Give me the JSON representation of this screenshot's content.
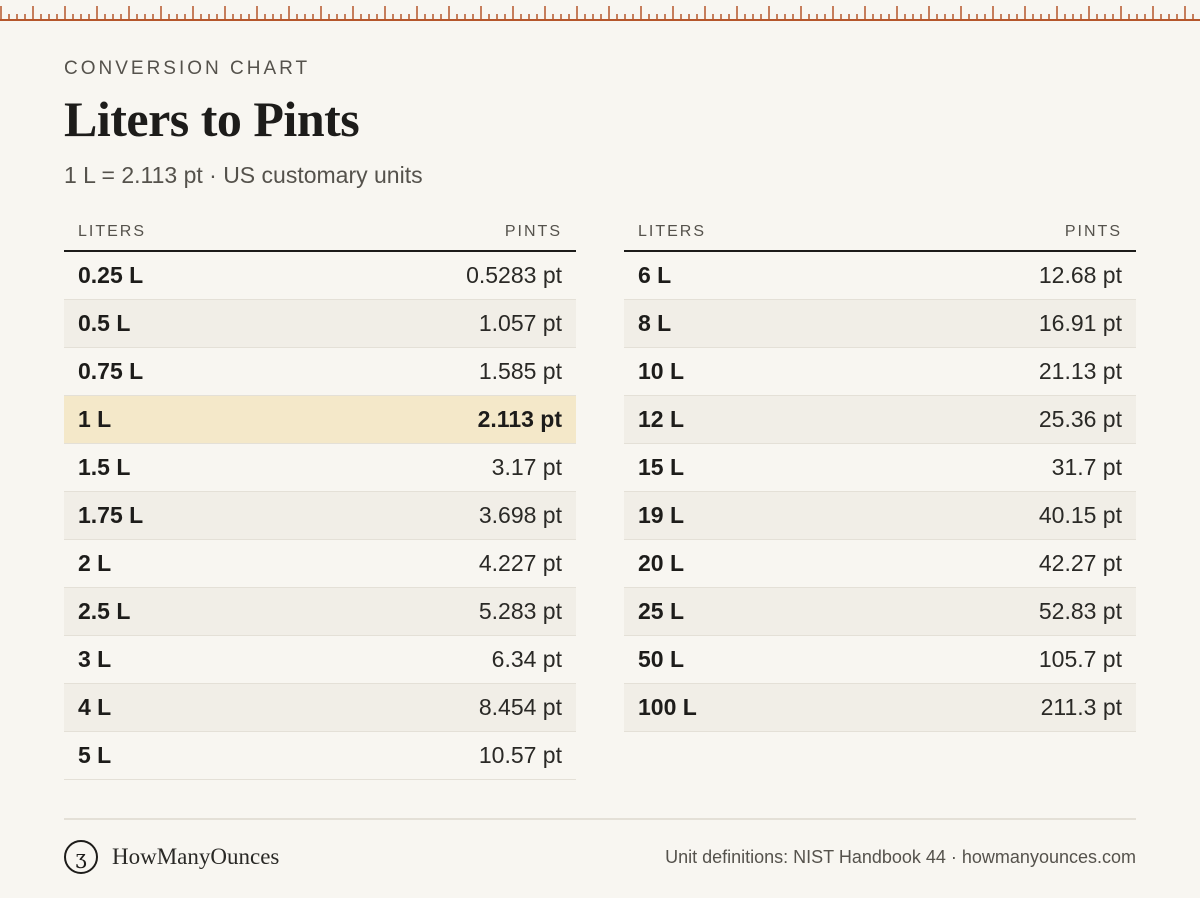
{
  "header": {
    "eyebrow": "CONVERSION CHART",
    "title": "Liters to Pints",
    "subtitle": "1 L = 2.113 pt · US customary units"
  },
  "tables": [
    {
      "col_liters": "LITERS",
      "col_pints": "PINTS",
      "rows": [
        {
          "liters": "0.25 L",
          "pints": "0.5283 pt"
        },
        {
          "liters": "0.5 L",
          "pints": "1.057 pt"
        },
        {
          "liters": "0.75 L",
          "pints": "1.585 pt"
        },
        {
          "liters": "1 L",
          "pints": "2.113 pt",
          "highlight": true
        },
        {
          "liters": "1.5 L",
          "pints": "3.17 pt"
        },
        {
          "liters": "1.75 L",
          "pints": "3.698 pt"
        },
        {
          "liters": "2 L",
          "pints": "4.227 pt"
        },
        {
          "liters": "2.5 L",
          "pints": "5.283 pt"
        },
        {
          "liters": "3 L",
          "pints": "6.34 pt"
        },
        {
          "liters": "4 L",
          "pints": "8.454 pt"
        },
        {
          "liters": "5 L",
          "pints": "10.57 pt"
        }
      ]
    },
    {
      "col_liters": "LITERS",
      "col_pints": "PINTS",
      "rows": [
        {
          "liters": "6 L",
          "pints": "12.68 pt"
        },
        {
          "liters": "8 L",
          "pints": "16.91 pt"
        },
        {
          "liters": "10 L",
          "pints": "21.13 pt"
        },
        {
          "liters": "12 L",
          "pints": "25.36 pt"
        },
        {
          "liters": "15 L",
          "pints": "31.7 pt"
        },
        {
          "liters": "19 L",
          "pints": "40.15 pt"
        },
        {
          "liters": "20 L",
          "pints": "42.27 pt"
        },
        {
          "liters": "25 L",
          "pints": "52.83 pt"
        },
        {
          "liters": "50 L",
          "pints": "105.7 pt"
        },
        {
          "liters": "100 L",
          "pints": "211.3 pt"
        }
      ]
    }
  ],
  "footer": {
    "logo_glyph": "ʒ",
    "brand": "HowManyOunces",
    "source": "Unit definitions: NIST Handbook 44 · howmanyounces.com"
  },
  "colors": {
    "ruler": "#b5562b",
    "highlight": "#f4e8c9",
    "background": "#f8f6f1"
  }
}
